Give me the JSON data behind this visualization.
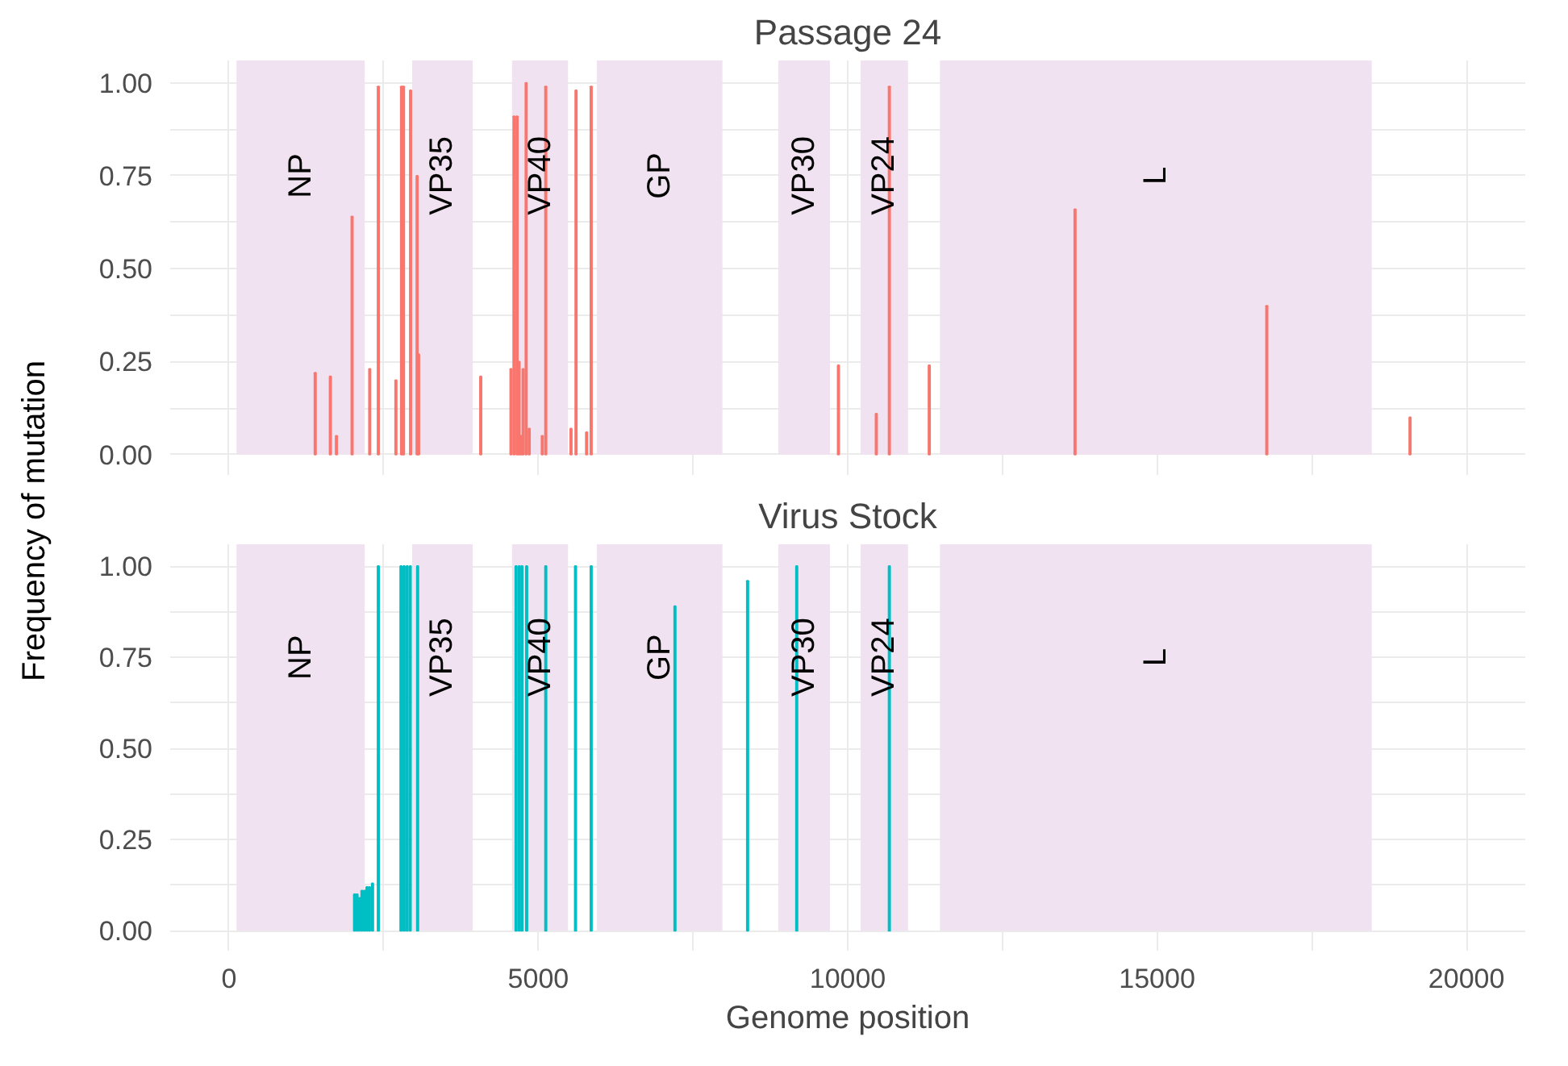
{
  "chart_data": [
    {
      "type": "bar",
      "title": "Passage 24",
      "ylabel": "Frequency of mutation",
      "tick_labels": "y",
      "grid": true,
      "x": [
        1394,
        1639,
        1737,
        1990,
        2275,
        2414,
        2698,
        2789,
        2821,
        2935,
        3041,
        3065,
        4069,
        4558,
        4607,
        4656,
        4688,
        4721,
        4754,
        4803,
        4852,
        5064,
        5120,
        5528,
        5609,
        5780,
        5854,
        9850,
        10462,
        10673,
        11318,
        13674,
        16773,
        19088
      ],
      "series": [
        {
          "color": "#f8766d",
          "values": [
            0.22,
            0.21,
            0.05,
            0.64,
            0.23,
            0.99,
            0.2,
            0.99,
            0.99,
            0.98,
            0.75,
            0.27,
            0.21,
            0.23,
            0.91,
            0.91,
            0.25,
            0.05,
            0.23,
            1.0,
            0.07,
            0.05,
            0.99,
            0.07,
            0.98,
            0.06,
            0.99,
            0.24,
            0.11,
            0.99,
            0.24,
            0.66,
            0.4,
            0.1
          ]
        }
      ],
      "xlim": [
        -950,
        20950
      ],
      "ylim": [
        -0.055,
        1.06
      ],
      "xticks": [
        0,
        {
          "value": 2500,
          "label": null
        },
        5000,
        {
          "value": 7500,
          "label": null
        },
        10000,
        {
          "value": 12500,
          "label": null
        },
        15000,
        {
          "value": 17500,
          "label": null
        },
        20000
      ],
      "yticks": [
        "0.00",
        {
          "value": 0.125,
          "label": null
        },
        {
          "value": 0.25,
          "label": "0.25"
        },
        {
          "value": 0.375,
          "label": null
        },
        {
          "value": 0.5,
          "label": "0.50"
        },
        {
          "value": 0.625,
          "label": null
        },
        {
          "value": 0.75,
          "label": "0.75"
        },
        {
          "value": 0.875,
          "label": null
        },
        {
          "value": 1,
          "label": "1.00"
        }
      ],
      "bands": [
        {
          "axis": "x",
          "from": 122,
          "to": 2194,
          "label": "NP",
          "color": "#f0e2f0"
        },
        {
          "axis": "x",
          "from": 2960,
          "to": 3938,
          "label": "VP35",
          "color": "#f0e2f0"
        },
        {
          "axis": "x",
          "from": 4575,
          "to": 5480,
          "label": "VP40",
          "color": "#f0e2f0"
        },
        {
          "axis": "x",
          "from": 5944,
          "to": 7975,
          "label": "GP",
          "color": "#f0e2f0"
        },
        {
          "axis": "x",
          "from": 8880,
          "to": 9712,
          "label": "VP30",
          "color": "#f0e2f0"
        },
        {
          "axis": "x",
          "from": 10208,
          "to": 10975,
          "label": "VP24",
          "color": "#f0e2f0"
        },
        {
          "axis": "x",
          "from": 11490,
          "to": 18470,
          "label": "L",
          "color": "#f0e2f0"
        }
      ]
    },
    {
      "type": "bar",
      "title": "Virus Stock",
      "xlabel": "Genome position",
      "grid": true,
      "x": [
        2030,
        2070,
        2110,
        2150,
        2190,
        2230,
        2270,
        2320,
        2414,
        2780,
        2830,
        2880,
        2930,
        3049,
        4640,
        4690,
        4735,
        4811,
        5120,
        5601,
        5854,
        7208,
        8382,
        9176,
        10673
      ],
      "series": [
        {
          "color": "#00bfc4",
          "values": [
            0.1,
            0.1,
            0.09,
            0.11,
            0.11,
            0.12,
            0.12,
            0.13,
            1.0,
            1.0,
            1.0,
            1.0,
            1.0,
            1.0,
            1.0,
            1.0,
            1.0,
            1.0,
            1.0,
            1.0,
            1.0,
            0.89,
            0.96,
            1.0,
            1.0
          ]
        }
      ],
      "xlim": [
        -950,
        20950
      ],
      "ylim": [
        -0.055,
        1.06
      ],
      "xticks": [
        0,
        {
          "value": 2500,
          "label": null
        },
        5000,
        {
          "value": 7500,
          "label": null
        },
        10000,
        {
          "value": 12500,
          "label": null
        },
        15000,
        {
          "value": 17500,
          "label": null
        },
        20000
      ],
      "yticks": [
        "0.00",
        {
          "value": 0.125,
          "label": null
        },
        {
          "value": 0.25,
          "label": "0.25"
        },
        {
          "value": 0.375,
          "label": null
        },
        {
          "value": 0.5,
          "label": "0.50"
        },
        {
          "value": 0.625,
          "label": null
        },
        {
          "value": 0.75,
          "label": "0.75"
        },
        {
          "value": 0.875,
          "label": null
        },
        {
          "value": 1,
          "label": "1.00"
        }
      ],
      "bands": [
        {
          "axis": "x",
          "from": 122,
          "to": 2194,
          "label": "NP",
          "color": "#f0e2f0"
        },
        {
          "axis": "x",
          "from": 2960,
          "to": 3938,
          "label": "VP35",
          "color": "#f0e2f0"
        },
        {
          "axis": "x",
          "from": 4575,
          "to": 5480,
          "label": "VP40",
          "color": "#f0e2f0"
        },
        {
          "axis": "x",
          "from": 5944,
          "to": 7975,
          "label": "GP",
          "color": "#f0e2f0"
        },
        {
          "axis": "x",
          "from": 8880,
          "to": 9712,
          "label": "VP30",
          "color": "#f0e2f0"
        },
        {
          "axis": "x",
          "from": 10208,
          "to": 10975,
          "label": "VP24",
          "color": "#f0e2f0"
        },
        {
          "axis": "x",
          "from": 11490,
          "to": 18470,
          "label": "L",
          "color": "#f0e2f0"
        }
      ]
    }
  ]
}
